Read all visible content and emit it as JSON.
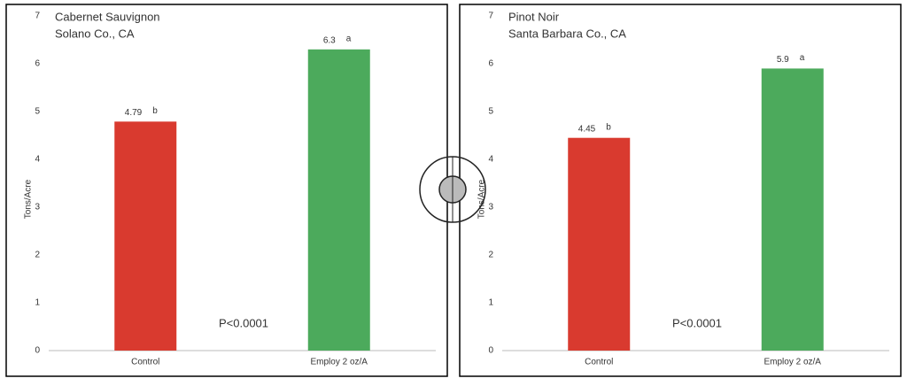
{
  "chart_data": [
    {
      "type": "bar",
      "title": "Cabernet Sauvignon",
      "subtitle": "Solano Co., CA",
      "y_label": "Tons/Acre",
      "categories": [
        "Control",
        "Employ 2 oz/A"
      ],
      "values": [
        4.79,
        6.3
      ],
      "letters": [
        "b",
        "a"
      ],
      "colors": [
        "#d93a2f",
        "#4caa5c"
      ],
      "ylim": [
        0,
        7
      ],
      "yticks": [
        0,
        1,
        2,
        3,
        4,
        5,
        6,
        7
      ],
      "annotation": "P<0.0001"
    },
    {
      "type": "bar",
      "title": "Pinot Noir",
      "subtitle": "Santa Barbara Co., CA",
      "y_label": "Tons/Acre",
      "categories": [
        "Control",
        "Employ 2 oz/A"
      ],
      "values": [
        4.45,
        5.9
      ],
      "letters": [
        "b",
        "a"
      ],
      "colors": [
        "#d93a2f",
        "#4caa5c"
      ],
      "ylim": [
        0,
        7
      ],
      "yticks": [
        0,
        1,
        2,
        3,
        4,
        5,
        6,
        7
      ],
      "annotation": "P<0.0001"
    }
  ]
}
